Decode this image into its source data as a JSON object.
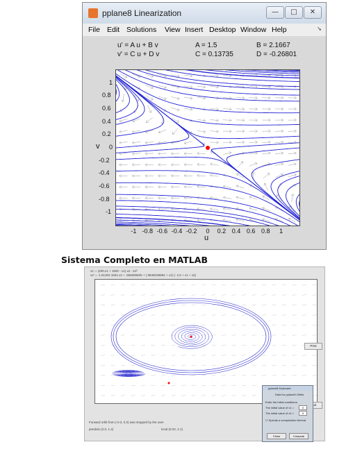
{
  "window": {
    "title": "pplane8 Linearization",
    "minimize": "—",
    "maximize": "□",
    "close": "✕"
  },
  "menu": [
    "File",
    "Edit",
    "Solutions",
    "View",
    "Insert",
    "Desktop",
    "Window",
    "Help"
  ],
  "equations": {
    "eq1": "u' = A u + B v",
    "eq2": "v' = C u + D v",
    "A": "A = 1.5",
    "B": "B = 2.1667",
    "C": "C = 0.13735",
    "D": "D = -0.26801"
  },
  "colors": {
    "trajectory": "#1f1fd4",
    "arrows": "#9a9a9a",
    "equilibrium": "#ff0000"
  },
  "chart_data": [
    {
      "type": "scatter",
      "xlabel": "u",
      "ylabel": "v",
      "xlim": [
        -1.25,
        1.25
      ],
      "ylim": [
        -1.2,
        1.2
      ],
      "xticks": [
        "-1",
        "-0.8",
        "-0.6",
        "-0.4",
        "-0.2",
        "0",
        "0.2",
        "0.4",
        "0.6",
        "0.8",
        "1"
      ],
      "yticks": [
        "1",
        "0.8",
        "0.6",
        "0.4",
        "0.2",
        "0",
        "-0.2",
        "-0.4",
        "-0.6",
        "-0.8",
        "-1"
      ],
      "equilibrium": {
        "x": 0,
        "y": 0
      },
      "grid": false
    }
  ],
  "section_title": "Sistema Completo en MATLAB",
  "second_screenshot": {
    "eq_line1": "x1' = (200.x1 + 1500 - x1) x2 - x2²",
    "eq_line2": "x2' = -1.61302 1604 x2 + .556090825 + ( 8849036884 + x1) (- 2.5 + x1 + x2)",
    "button_print": "Print",
    "button_quit": "Quit",
    "status1": "Forward orbit from (-0.3, 0.2) was stopped by the user",
    "status2": "pendulo  (2.0, 1.2)",
    "status3": "local (0.02, 2.1)",
    "dialog": {
      "title": "pplane8 Keyboard",
      "heading": "Data for pplane8 Orbits",
      "prompt": "Enter the initial conditions.",
      "x1_label": "The initial value of x1 =",
      "x1_value": "0",
      "x2_label": "The initial value of x2 =",
      "x2_value": "0",
      "option": "Specify a computation interval",
      "close": "Close",
      "compute": "Compute"
    }
  }
}
